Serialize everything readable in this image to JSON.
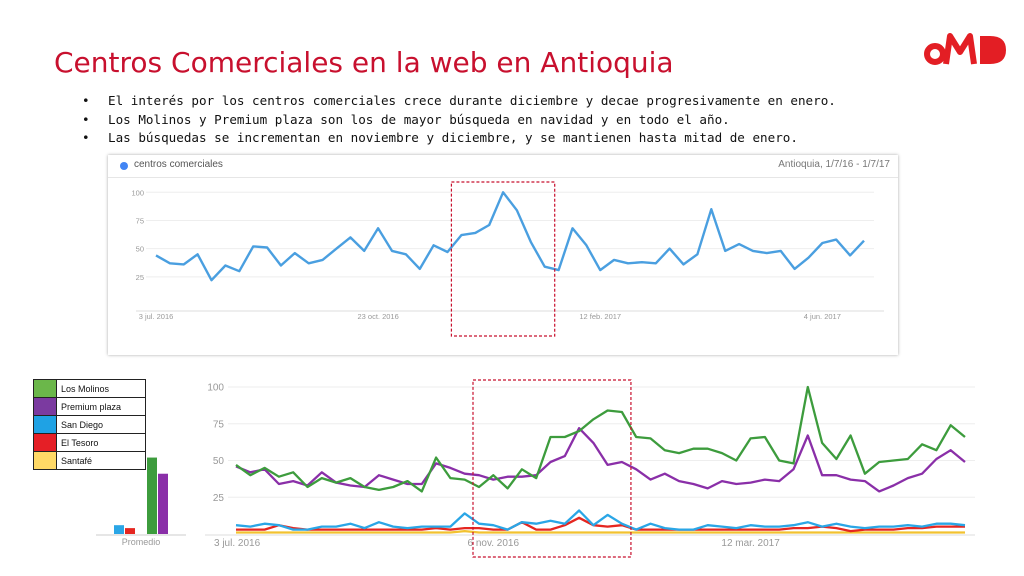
{
  "page": {
    "title": "Centros Comerciales en la web en Antioquia",
    "logo_text": "OMD",
    "bullets": [
      "El interés por los centros comerciales crece durante diciembre y decae progresivamente en enero.",
      "Los Molinos y Premium plaza son los de mayor búsqueda en navidad y en todo el año.",
      "Las búsquedas se incrementan en noviembre y diciembre, y se mantienen hasta mitad de enero."
    ],
    "colors": {
      "accent": "#c8102e",
      "logo": "#e31e24",
      "highlight_box": "#c8102e"
    }
  },
  "chart_data": [
    {
      "type": "line",
      "header_term": "centros comerciales",
      "header_range": "Antioquia, 1/7/16 - 1/7/17",
      "x_tick_labels": [
        "3 jul. 2016",
        "23 oct. 2016",
        "12 feb. 2017",
        "4 jun. 2017"
      ],
      "x_tick_index": [
        0,
        16,
        32,
        48
      ],
      "yticks": [
        25,
        50,
        75,
        100
      ],
      "ylim": [
        0,
        110
      ],
      "series": [
        {
          "name": "centros comerciales",
          "color": "#4a9fe0",
          "values": [
            44,
            37,
            36,
            45,
            22,
            35,
            30,
            52,
            51,
            35,
            46,
            37,
            40,
            50,
            60,
            48,
            68,
            48,
            45,
            32,
            53,
            47,
            62,
            64,
            71,
            100,
            84,
            56,
            34,
            31,
            68,
            53,
            31,
            40,
            37,
            38,
            37,
            50,
            36,
            45,
            85,
            48,
            54,
            48,
            46,
            48,
            32,
            42,
            55,
            58,
            44,
            57
          ]
        }
      ],
      "highlight": {
        "from_index": 22,
        "to_index": 28
      }
    },
    {
      "type": "line",
      "x_tick_labels": [
        "3 jul. 2016",
        "6 nov. 2016",
        "12 mar. 2017"
      ],
      "x_tick_index": [
        0,
        18,
        36
      ],
      "yticks": [
        25,
        50,
        75,
        100
      ],
      "ylim": [
        0,
        100
      ],
      "series": [
        {
          "name": "Los Molinos",
          "color": "#3d9c3d",
          "values": [
            47,
            40,
            45,
            39,
            42,
            32,
            38,
            35,
            38,
            32,
            30,
            32,
            36,
            29,
            52,
            38,
            37,
            32,
            40,
            31,
            44,
            38,
            66,
            66,
            70,
            78,
            84,
            83,
            66,
            65,
            57,
            55,
            58,
            58,
            55,
            50,
            65,
            66,
            50,
            48,
            100,
            62,
            51,
            67,
            41,
            49,
            50,
            51,
            61,
            57,
            74,
            66
          ]
        },
        {
          "name": "Premium plaza",
          "color": "#8a2fa8",
          "values": [
            46,
            42,
            44,
            34,
            36,
            33,
            42,
            35,
            33,
            32,
            40,
            37,
            34,
            34,
            48,
            45,
            41,
            40,
            37,
            39,
            39,
            40,
            49,
            53,
            72,
            62,
            47,
            49,
            44,
            37,
            41,
            36,
            34,
            31,
            36,
            34,
            35,
            37,
            36,
            44,
            67,
            40,
            40,
            37,
            36,
            29,
            33,
            38,
            41,
            51,
            57,
            49
          ]
        },
        {
          "name": "San Diego",
          "color": "#2aa6e6",
          "values": [
            6,
            5,
            7,
            6,
            3,
            3,
            5,
            5,
            7,
            4,
            8,
            5,
            4,
            5,
            5,
            5,
            14,
            7,
            6,
            3,
            8,
            7,
            9,
            7,
            16,
            6,
            13,
            7,
            3,
            7,
            4,
            3,
            3,
            6,
            5,
            4,
            6,
            5,
            5,
            6,
            8,
            5,
            7,
            5,
            4,
            5,
            5,
            6,
            5,
            7,
            7,
            6
          ]
        },
        {
          "name": "El Tesoro",
          "color": "#e52620",
          "values": [
            3,
            3,
            3,
            6,
            4,
            3,
            3,
            3,
            3,
            3,
            3,
            3,
            3,
            3,
            4,
            3,
            4,
            4,
            3,
            3,
            8,
            3,
            3,
            6,
            11,
            6,
            5,
            6,
            3,
            3,
            3,
            3,
            3,
            3,
            3,
            3,
            3,
            3,
            3,
            4,
            4,
            5,
            4,
            2,
            3,
            3,
            3,
            4,
            4,
            5,
            5,
            5
          ]
        },
        {
          "name": "Santafé",
          "color": "#f2c230",
          "values": [
            1,
            1,
            1,
            1,
            1,
            1,
            1,
            1,
            1,
            1,
            1,
            1,
            1,
            1,
            1,
            1,
            2,
            1,
            1,
            1,
            1,
            1,
            1,
            1,
            1,
            1,
            1,
            1,
            1,
            1,
            1,
            1,
            1,
            1,
            1,
            1,
            1,
            1,
            1,
            1,
            1,
            1,
            1,
            1,
            1,
            1,
            1,
            1,
            1,
            1,
            1,
            1
          ]
        }
      ],
      "highlight": {
        "from_index": 17,
        "to_index": 27
      }
    },
    {
      "type": "bar",
      "categories": [
        "Promedio"
      ],
      "series": [
        {
          "name": "San Diego",
          "color": "#2aa6e6",
          "values": [
            6
          ]
        },
        {
          "name": "El Tesoro",
          "color": "#e52620",
          "values": [
            4
          ]
        },
        {
          "name": "Los Molinos",
          "color": "#3d9c3d",
          "values": [
            52
          ]
        },
        {
          "name": "Premium plaza",
          "color": "#8a2fa8",
          "values": [
            41
          ]
        }
      ],
      "ylim": [
        0,
        100
      ]
    }
  ],
  "legend": [
    {
      "label": "Los Molinos",
      "color": "#6bb74a"
    },
    {
      "label": "Premium plaza",
      "color": "#7b3aa0"
    },
    {
      "label": "San Diego",
      "color": "#1fa2e4"
    },
    {
      "label": "El Tesoro",
      "color": "#e51f26"
    },
    {
      "label": "Santafé",
      "color": "#ffd966"
    }
  ]
}
